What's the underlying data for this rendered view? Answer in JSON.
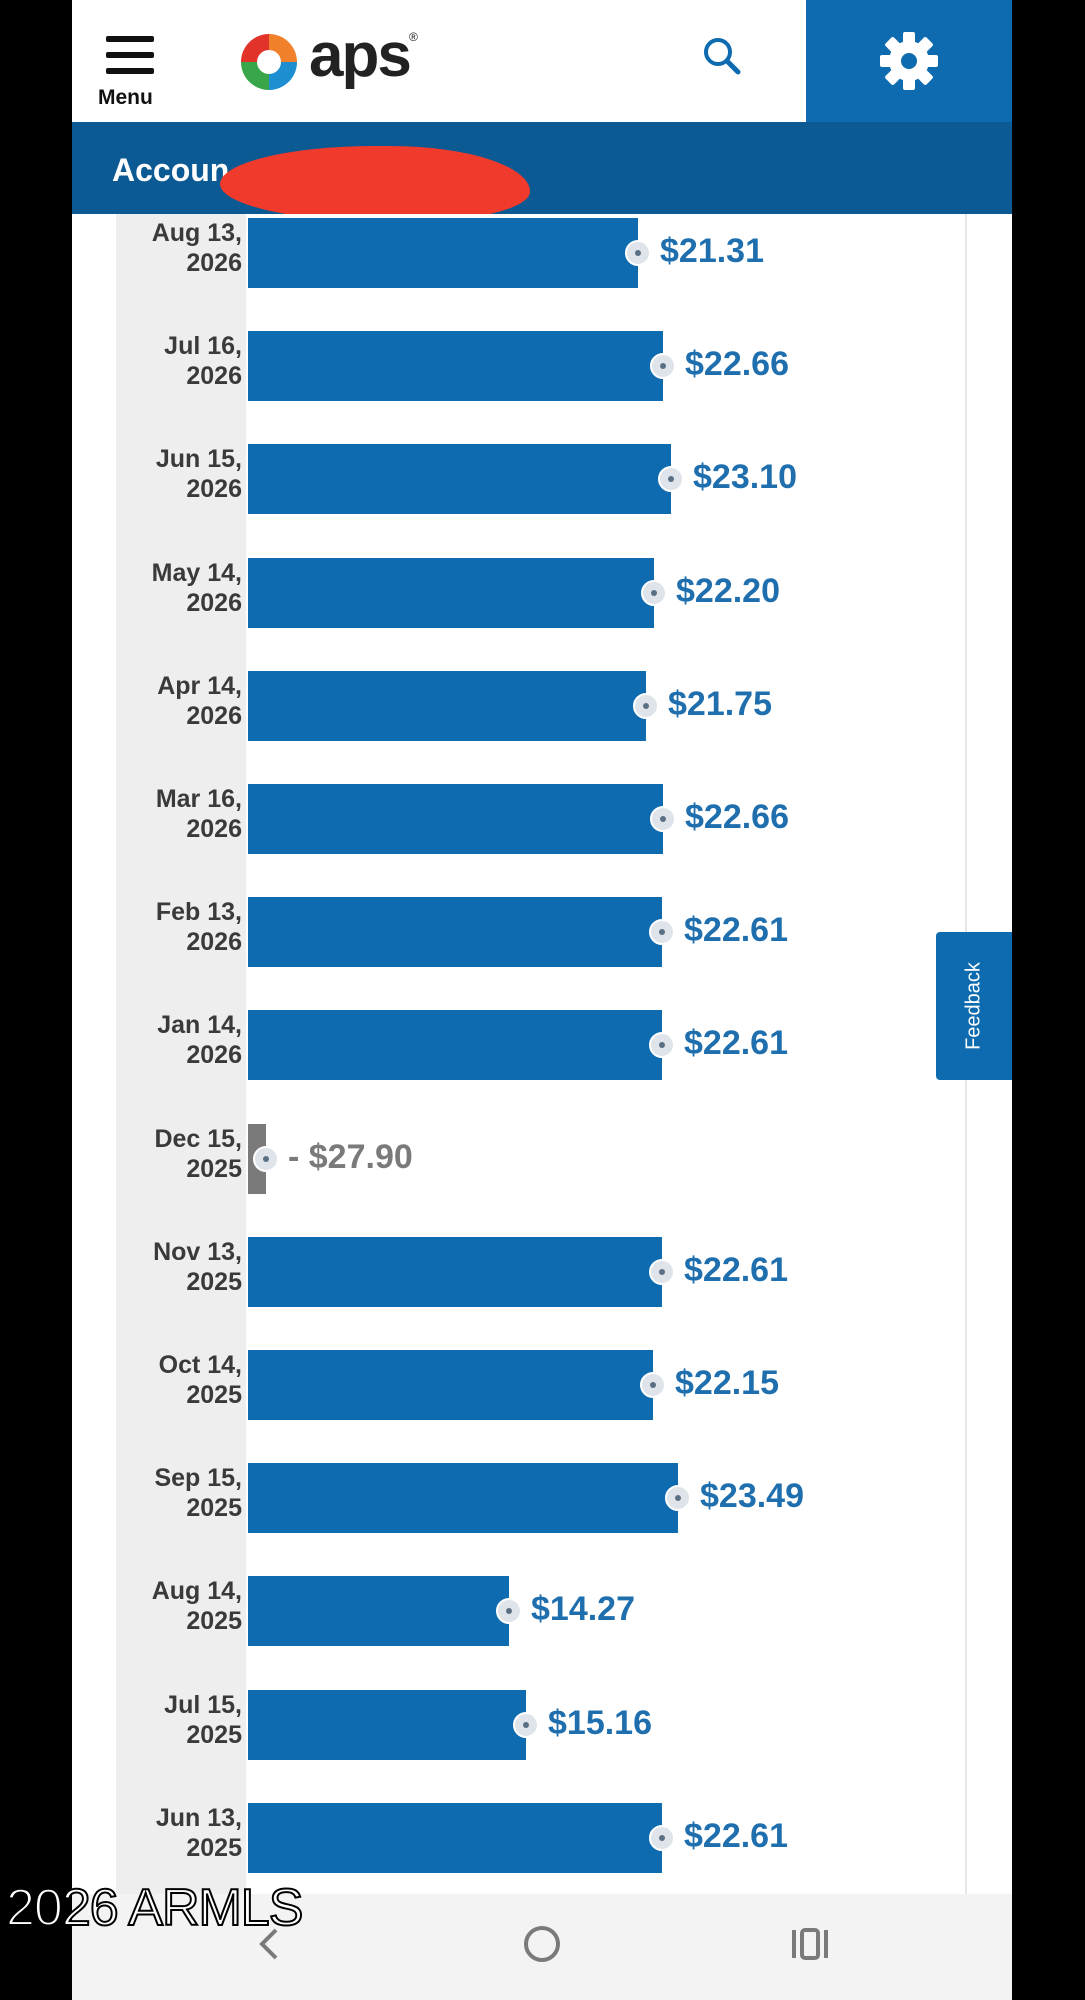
{
  "header": {
    "menu_label": "Menu",
    "logo_text": "aps",
    "logo_registered": "®",
    "account_label": "Accoun"
  },
  "colors": {
    "brand_blue": "#0e6bb0",
    "account_bar": "#0b5a93",
    "negative_bar": "#7a7a7a"
  },
  "feedback_label": "Feedback",
  "watermark": "2026 ARMLS",
  "chart_data": {
    "type": "bar",
    "orientation": "horizontal",
    "categories": [
      [
        "Aug 13,",
        "2026"
      ],
      [
        "Jul 16,",
        "2026"
      ],
      [
        "Jun 15,",
        "2026"
      ],
      [
        "May 14,",
        "2026"
      ],
      [
        "Apr 14,",
        "2026"
      ],
      [
        "Mar 16,",
        "2026"
      ],
      [
        "Feb 13,",
        "2026"
      ],
      [
        "Jan 14,",
        "2026"
      ],
      [
        "Dec 15,",
        "2025"
      ],
      [
        "Nov 13,",
        "2025"
      ],
      [
        "Oct 14,",
        "2025"
      ],
      [
        "Sep 15,",
        "2025"
      ],
      [
        "Aug 14,",
        "2025"
      ],
      [
        "Jul 15,",
        "2025"
      ],
      [
        "Jun 13,",
        "2025"
      ]
    ],
    "values": [
      21.31,
      22.66,
      23.1,
      22.2,
      21.75,
      22.66,
      22.61,
      22.61,
      -27.9,
      22.61,
      22.15,
      23.49,
      14.27,
      15.16,
      22.61
    ],
    "labels": [
      "$21.31",
      "$22.66",
      "$23.10",
      "$22.20",
      "$21.75",
      "$22.66",
      "$22.61",
      "$22.61",
      "- $27.90",
      "$22.61",
      "$22.15",
      "$23.49",
      "$14.27",
      "$15.16",
      "$22.61"
    ]
  }
}
